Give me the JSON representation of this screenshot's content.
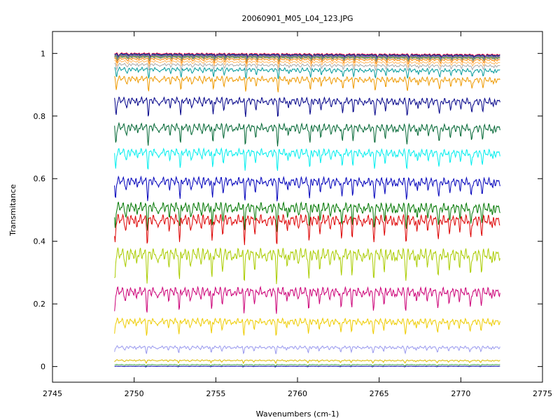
{
  "chart_data": {
    "type": "line",
    "title": "20060901_M05_L04_123.JPG",
    "xlabel": "Wavenumbers (cm-1)",
    "ylabel": "Transmitance",
    "xlim": [
      2745,
      2775
    ],
    "ylim": [
      -0.05,
      1.07
    ],
    "x_ticks": [
      2745,
      2750,
      2755,
      2760,
      2765,
      2770,
      2775
    ],
    "y_ticks": [
      0,
      0.2,
      0.4,
      0.6,
      0.8,
      1
    ],
    "x_tick_labels": [
      "2745",
      "2750",
      "2755",
      "2760",
      "2765",
      "2770",
      "2775"
    ],
    "y_tick_labels": [
      "0",
      "0.2",
      "0.4",
      "0.6",
      "0.8",
      "1"
    ],
    "x_range": [
      2748.8,
      2772.4
    ],
    "grid": false,
    "legend": "none",
    "series": [
      {
        "color": "#ff0000",
        "baseline": 1.0,
        "depth": 0.008,
        "slope": -0.004
      },
      {
        "color": "#0000ff",
        "baseline": 0.998,
        "depth": 0.008,
        "slope": -0.004
      },
      {
        "color": "#00aa00",
        "baseline": 0.996,
        "depth": 0.009,
        "slope": -0.004
      },
      {
        "color": "#ff00ff",
        "baseline": 0.994,
        "depth": 0.01,
        "slope": -0.004
      },
      {
        "color": "#00aaaa",
        "baseline": 0.992,
        "depth": 0.01,
        "slope": -0.004
      },
      {
        "color": "#aaaa00",
        "baseline": 0.99,
        "depth": 0.011,
        "slope": -0.004
      },
      {
        "color": "#888888",
        "baseline": 0.988,
        "depth": 0.011,
        "slope": -0.004
      },
      {
        "color": "#ff8800",
        "baseline": 0.983,
        "depth": 0.013,
        "slope": -0.004
      },
      {
        "color": "#ffbb66",
        "baseline": 0.975,
        "depth": 0.014,
        "slope": -0.005
      },
      {
        "color": "#aaaaaa",
        "baseline": 0.965,
        "depth": 0.016,
        "slope": -0.005
      },
      {
        "color": "#009999",
        "baseline": 0.95,
        "depth": 0.025,
        "slope": -0.005
      },
      {
        "color": "#ee9900",
        "baseline": 0.92,
        "depth": 0.035,
        "slope": -0.005
      },
      {
        "color": "#000088",
        "baseline": 0.85,
        "depth": 0.045,
        "slope": -0.004
      },
      {
        "color": "#006633",
        "baseline": 0.765,
        "depth": 0.05,
        "slope": -0.004
      },
      {
        "color": "#00eeee",
        "baseline": 0.685,
        "depth": 0.05,
        "slope": -0.004
      },
      {
        "color": "#0000bb",
        "baseline": 0.593,
        "depth": 0.055,
        "slope": -0.004
      },
      {
        "color": "#007700",
        "baseline": 0.51,
        "depth": 0.065,
        "slope": -0.004
      },
      {
        "color": "#dd0000",
        "baseline": 0.47,
        "depth": 0.07,
        "slope": -0.003
      },
      {
        "color": "#aacc00",
        "baseline": 0.36,
        "depth": 0.08,
        "slope": -0.003
      },
      {
        "color": "#cc0077",
        "baseline": 0.24,
        "depth": 0.06,
        "slope": -0.002
      },
      {
        "color": "#eecc00",
        "baseline": 0.145,
        "depth": 0.04,
        "slope": -0.002
      },
      {
        "color": "#9999ee",
        "baseline": 0.062,
        "depth": 0.018,
        "slope": -0.001
      },
      {
        "color": "#ddbb00",
        "baseline": 0.02,
        "depth": 0.008,
        "slope": -0.001
      },
      {
        "color": "#44aa44",
        "baseline": 0.006,
        "depth": 0.004,
        "slope": 0.0
      },
      {
        "color": "#0000aa",
        "baseline": 0.001,
        "depth": 0.002,
        "slope": 0.0
      }
    ]
  }
}
